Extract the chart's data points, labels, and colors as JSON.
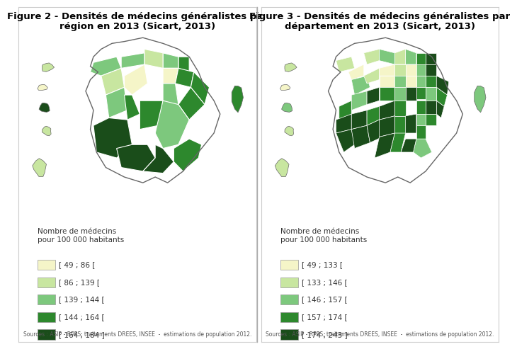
{
  "fig2": {
    "title_line1": "Figure 2 - Densités de médecins généralistes par",
    "title_line2": "région en 2013 (Sicart, 2013)",
    "legend_title": "Nombre de médecins\npour 100 000 habitants",
    "legend_labels": [
      "[ 49 ; 86 [",
      "[ 86 ; 139 [",
      "[ 139 ; 144 [",
      "[ 144 ; 164 [",
      "[ 164 ; 184 ]"
    ],
    "legend_colors": [
      "#f5f5c8",
      "#c8e6a0",
      "#7dc87d",
      "#2d882d",
      "#1a4d1a"
    ],
    "source": "Sources : ASIP - RPPS, traitements DREES, INSEE  -  estimations de population 2012.",
    "is_region": true
  },
  "fig3": {
    "title_line1": "Figure 3 - Densités de médecins généralistes par",
    "title_line2": "département en 2013 (Sicart, 2013)",
    "legend_title": "Nombre de médecins\npour 100 000 habitants",
    "legend_labels": [
      "[ 49 ; 133 [",
      "[ 133 ; 146 [",
      "[ 146 ; 157 [",
      "[ 157 ; 174 [",
      "[ 174 ; 243 ]"
    ],
    "legend_colors": [
      "#f5f5c8",
      "#c8e6a0",
      "#7dc87d",
      "#2d882d",
      "#1a4d1a"
    ],
    "source": "Sources : ASIP - RPPS, traitements DREES, INSEE  -  estimations de population 2012.",
    "is_region": false
  },
  "background_color": "#ffffff",
  "border_color": "#cccccc",
  "title_fontsize": 9.5,
  "legend_title_fontsize": 7.5,
  "legend_fontsize": 7.5,
  "source_fontsize": 5.5
}
